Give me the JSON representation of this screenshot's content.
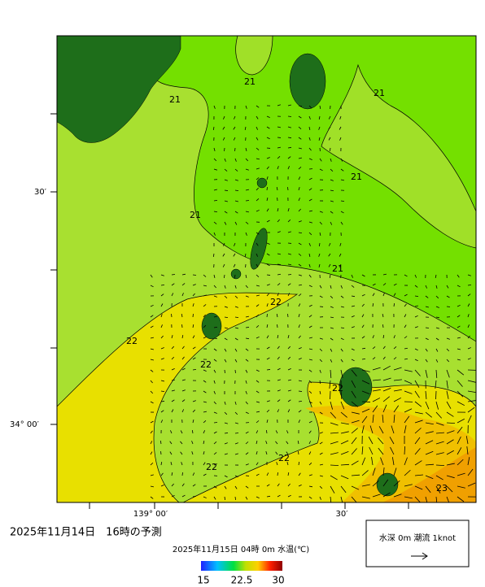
{
  "map": {
    "lat_labels": [
      "30′",
      "34° 00′"
    ],
    "lon_labels": [
      "139° 00′",
      "30′"
    ],
    "contour_labels": [
      "21",
      "21",
      "21",
      "21",
      "21",
      "21",
      "22",
      "22",
      "22",
      "22",
      "22",
      "22",
      "23"
    ]
  },
  "forecast_time": "2025年11月14日　16時の予測",
  "colorbar": {
    "title": "2025年11月15日 04時 0m 水温(℃)",
    "ticks": [
      "15",
      "22.5",
      "30"
    ]
  },
  "legend": {
    "text": "水深 0m 潮流 1knot"
  }
}
